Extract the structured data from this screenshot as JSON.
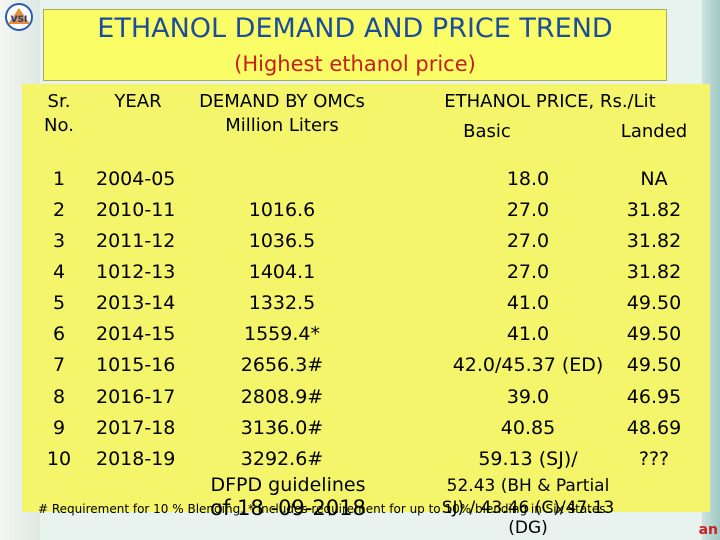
{
  "title": "ETHANOL DEMAND AND PRICE TREND",
  "subtitle": "(Highest ethanol price)",
  "logo_text": "VSI",
  "headers": {
    "sr": "Sr. No.",
    "year": "YEAR",
    "demand": "DEMAND BY OMCs Million Liters",
    "price": "ETHANOL PRICE, Rs./Lit",
    "basic": "Basic",
    "landed": "Landed"
  },
  "rows": [
    {
      "sr": "1",
      "year": "2004-05",
      "demand": "",
      "basic": "18.0",
      "landed": "NA"
    },
    {
      "sr": "2",
      "year": "2010-11",
      "demand": "1016.6",
      "basic": "27.0",
      "landed": "31.82"
    },
    {
      "sr": "3",
      "year": "2011-12",
      "demand": "1036.5",
      "basic": "27.0",
      "landed": "31.82"
    },
    {
      "sr": "4",
      "year": "1012-13",
      "demand": "1404.1",
      "basic": "27.0",
      "landed": "31.82"
    },
    {
      "sr": "5",
      "year": "2013-14",
      "demand": "1332.5",
      "basic": "41.0",
      "landed": "49.50"
    },
    {
      "sr": "6",
      "year": "2014-15",
      "demand": "1559.4*",
      "basic": "41.0",
      "landed": "49.50"
    },
    {
      "sr": "7",
      "year": "1015-16",
      "demand": "2656.3#",
      "basic": "42.0/45.37 (ED)",
      "landed": "49.50"
    },
    {
      "sr": "8",
      "year": "2016-17",
      "demand": "2808.9#",
      "basic": "39.0",
      "landed": "46.95"
    },
    {
      "sr": "9",
      "year": "2017-18",
      "demand": "3136.0#",
      "basic": "40.85",
      "landed": "48.69"
    },
    {
      "sr": "10",
      "year": "2018-19",
      "demand": "3292.6#",
      "basic": "59.13 (SJ)/",
      "landed": "???"
    }
  ],
  "row10_extra": {
    "basic_line2": "52.43 (BH & Partial",
    "basic_line3": "SJ) / 43.46 (C)/47.13",
    "basic_line4": "(DG)",
    "guidelines_line1": "DFPD guidelines",
    "guidelines_line2": "of 18 -09-2018"
  },
  "footnote": "# Requirement for 10 % Blending. * Includes requirement for up to 10% blending in Six States.",
  "corner_tag": "an"
}
